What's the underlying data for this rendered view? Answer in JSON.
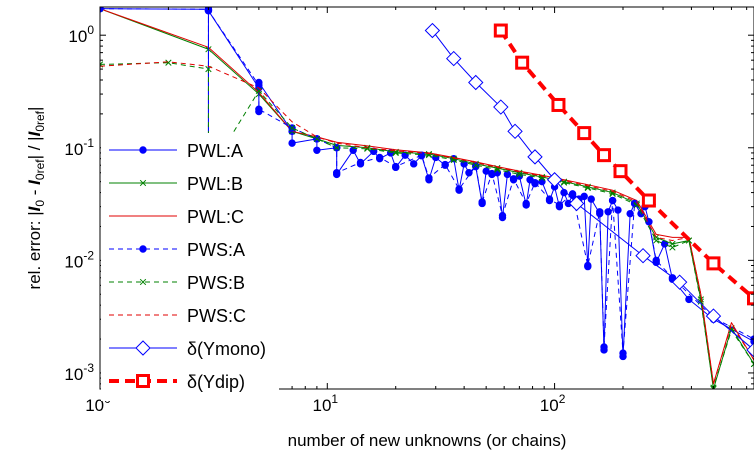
{
  "chart_data": {
    "type": "line",
    "xscale": "log",
    "yscale": "log",
    "xlim": [
      1,
      754
    ],
    "ylim": [
      0.00072,
      1.78
    ],
    "xlabel": "number of new unknowns (or chains)",
    "ylabel_parts": {
      "prefix": "rel. error: |",
      "I0": "I",
      "I0_sub": "0",
      "minus": " - ",
      "Iref": "I",
      "Iref_sub": "0ref",
      "div": "| / |",
      "Iref2": "I",
      "Iref2_sub": "0ref",
      "suffix": "|"
    },
    "xticks": [
      {
        "value": 1,
        "base": "10",
        "exp": "0"
      },
      {
        "value": 10,
        "base": "10",
        "exp": "1"
      },
      {
        "value": 100,
        "base": "10",
        "exp": "2"
      }
    ],
    "yticks": [
      {
        "value": 0.001,
        "base": "10",
        "exp": "-3"
      },
      {
        "value": 0.01,
        "base": "10",
        "exp": "-2"
      },
      {
        "value": 0.1,
        "base": "10",
        "exp": "-1"
      },
      {
        "value": 1,
        "base": "10",
        "exp": "0"
      }
    ],
    "legend_position": "left",
    "series": [
      {
        "name": "PWL:A",
        "color": "#0000ff",
        "dash": "solid",
        "marker": "dot",
        "width": 1,
        "points": [
          [
            1,
            1.72
          ],
          [
            3,
            1.7
          ],
          [
            3,
            0.05
          ],
          [
            3,
            1.65
          ],
          [
            5,
            0.34
          ],
          [
            5,
            0.21
          ],
          [
            5,
            0.38
          ],
          [
            7,
            0.14
          ],
          [
            7,
            0.11
          ],
          [
            9,
            0.12
          ],
          [
            9,
            0.095
          ],
          [
            11,
            0.1
          ],
          [
            11,
            0.058
          ],
          [
            13,
            0.095
          ],
          [
            14,
            0.072
          ],
          [
            16,
            0.093
          ],
          [
            17,
            0.08
          ],
          [
            19,
            0.09
          ],
          [
            20,
            0.067
          ],
          [
            22,
            0.086
          ],
          [
            24,
            0.072
          ],
          [
            26,
            0.085
          ],
          [
            28,
            0.052
          ],
          [
            30,
            0.082
          ],
          [
            33,
            0.07
          ],
          [
            36,
            0.08
          ],
          [
            38,
            0.042
          ],
          [
            40,
            0.072
          ],
          [
            42,
            0.06
          ],
          [
            45,
            0.068
          ],
          [
            48,
            0.032
          ],
          [
            50,
            0.062
          ],
          [
            53,
            0.058
          ],
          [
            56,
            0.06
          ],
          [
            59,
            0.024
          ],
          [
            62,
            0.058
          ],
          [
            66,
            0.052
          ],
          [
            70,
            0.056
          ],
          [
            75,
            0.031
          ],
          [
            78,
            0.052
          ],
          [
            82,
            0.048
          ],
          [
            88,
            0.05
          ],
          [
            95,
            0.034
          ],
          [
            100,
            0.045
          ],
          [
            105,
            0.03
          ],
          [
            110,
            0.04
          ],
          [
            115,
            0.032
          ],
          [
            120,
            0.038
          ],
          [
            128,
            0.035
          ],
          [
            135,
            0.037
          ],
          [
            140,
            0.0088
          ],
          [
            145,
            0.035
          ],
          [
            158,
            0.026
          ],
          [
            165,
            0.0016
          ],
          [
            172,
            0.027
          ],
          [
            180,
            0.034
          ],
          [
            190,
            0.028
          ],
          [
            200,
            0.0014
          ],
          [
            215,
            0.026
          ],
          [
            225,
            0.032
          ],
          [
            240,
            0.026
          ],
          [
            250,
            0.03
          ],
          [
            260,
            0.022
          ],
          [
            280,
            0.0096
          ],
          [
            305,
            0.014
          ],
          [
            330,
            0.0068
          ],
          [
            390,
            0.0045
          ],
          [
            500,
            0.003
          ],
          [
            754,
            0.0019
          ]
        ]
      },
      {
        "name": "PWL:B",
        "color": "#008000",
        "dash": "solid",
        "marker": "x",
        "width": 1,
        "points": [
          [
            1,
            1.72
          ],
          [
            3,
            0.75
          ],
          [
            5,
            0.3
          ],
          [
            7,
            0.14
          ],
          [
            9,
            0.12
          ],
          [
            11,
            0.105
          ],
          [
            15,
            0.1
          ],
          [
            20,
            0.092
          ],
          [
            28,
            0.088
          ],
          [
            36,
            0.08
          ],
          [
            45,
            0.072
          ],
          [
            56,
            0.066
          ],
          [
            70,
            0.06
          ],
          [
            88,
            0.055
          ],
          [
            110,
            0.05
          ],
          [
            140,
            0.045
          ],
          [
            180,
            0.04
          ],
          [
            230,
            0.032
          ],
          [
            280,
            0.016
          ],
          [
            330,
            0.014
          ],
          [
            390,
            0.015
          ],
          [
            440,
            0.0045
          ],
          [
            500,
            0.00072
          ],
          [
            600,
            0.0025
          ],
          [
            754,
            0.0012
          ]
        ]
      },
      {
        "name": "PWL:C",
        "color": "#e00000",
        "dash": "solid",
        "marker": "none",
        "width": 1,
        "points": [
          [
            1,
            1.72
          ],
          [
            3,
            0.78
          ],
          [
            5,
            0.31
          ],
          [
            7,
            0.14
          ],
          [
            9,
            0.125
          ],
          [
            11,
            0.112
          ],
          [
            15,
            0.104
          ],
          [
            20,
            0.096
          ],
          [
            28,
            0.09
          ],
          [
            36,
            0.082
          ],
          [
            45,
            0.075
          ],
          [
            56,
            0.068
          ],
          [
            70,
            0.062
          ],
          [
            88,
            0.057
          ],
          [
            110,
            0.052
          ],
          [
            140,
            0.047
          ],
          [
            180,
            0.042
          ],
          [
            230,
            0.034
          ],
          [
            280,
            0.017
          ],
          [
            330,
            0.016
          ],
          [
            390,
            0.016
          ],
          [
            440,
            0.005
          ],
          [
            500,
            0.0008
          ],
          [
            600,
            0.0028
          ],
          [
            754,
            0.0013
          ]
        ]
      },
      {
        "name": "PWS:A",
        "color": "#0000ff",
        "dash": "dashed",
        "marker": "dot",
        "width": 1,
        "points": [
          [
            1,
            1.72
          ],
          [
            3,
            1.7
          ],
          [
            3,
            0.05
          ],
          [
            3,
            1.65
          ],
          [
            5,
            0.36
          ],
          [
            5,
            0.22
          ],
          [
            7,
            0.15
          ],
          [
            9,
            0.12
          ],
          [
            11,
            0.1
          ],
          [
            11,
            0.06
          ],
          [
            14,
            0.074
          ],
          [
            17,
            0.082
          ],
          [
            20,
            0.068
          ],
          [
            26,
            0.086
          ],
          [
            28,
            0.054
          ],
          [
            33,
            0.071
          ],
          [
            38,
            0.043
          ],
          [
            45,
            0.069
          ],
          [
            48,
            0.033
          ],
          [
            53,
            0.059
          ],
          [
            59,
            0.025
          ],
          [
            66,
            0.053
          ],
          [
            75,
            0.032
          ],
          [
            82,
            0.049
          ],
          [
            95,
            0.035
          ],
          [
            105,
            0.031
          ],
          [
            120,
            0.039
          ],
          [
            140,
            0.009
          ],
          [
            158,
            0.027
          ],
          [
            165,
            0.0017
          ],
          [
            180,
            0.034
          ],
          [
            200,
            0.0015
          ],
          [
            225,
            0.032
          ],
          [
            260,
            0.022
          ],
          [
            280,
            0.01
          ],
          [
            330,
            0.007
          ],
          [
            500,
            0.0031
          ],
          [
            754,
            0.002
          ]
        ]
      },
      {
        "name": "PWS:B",
        "color": "#008000",
        "dash": "dashed",
        "marker": "x",
        "width": 1,
        "points": [
          [
            1,
            0.55
          ],
          [
            2,
            0.57
          ],
          [
            3,
            0.5
          ],
          [
            3,
            0.06
          ],
          [
            5,
            0.32
          ],
          [
            7,
            0.15
          ],
          [
            9,
            0.12
          ],
          [
            11,
            0.1
          ],
          [
            15,
            0.098
          ],
          [
            20,
            0.09
          ],
          [
            28,
            0.086
          ],
          [
            36,
            0.078
          ],
          [
            45,
            0.07
          ],
          [
            56,
            0.064
          ],
          [
            70,
            0.058
          ],
          [
            88,
            0.054
          ],
          [
            110,
            0.049
          ],
          [
            140,
            0.044
          ],
          [
            180,
            0.039
          ],
          [
            230,
            0.031
          ],
          [
            280,
            0.015
          ],
          [
            330,
            0.013
          ],
          [
            390,
            0.015
          ],
          [
            440,
            0.0043
          ],
          [
            500,
            0.00074
          ],
          [
            600,
            0.0024
          ],
          [
            754,
            0.0012
          ]
        ]
      },
      {
        "name": "PWS:C",
        "color": "#e00000",
        "dash": "dashed",
        "marker": "none",
        "width": 1,
        "points": [
          [
            1,
            0.53
          ],
          [
            2,
            0.58
          ],
          [
            3,
            0.53
          ],
          [
            5,
            0.34
          ],
          [
            7,
            0.17
          ],
          [
            9,
            0.125
          ],
          [
            11,
            0.11
          ],
          [
            15,
            0.1
          ],
          [
            20,
            0.094
          ],
          [
            28,
            0.089
          ],
          [
            36,
            0.081
          ],
          [
            45,
            0.074
          ],
          [
            56,
            0.067
          ],
          [
            70,
            0.061
          ],
          [
            88,
            0.056
          ],
          [
            110,
            0.051
          ],
          [
            140,
            0.046
          ],
          [
            180,
            0.041
          ],
          [
            230,
            0.033
          ],
          [
            280,
            0.016
          ],
          [
            330,
            0.015
          ],
          [
            390,
            0.016
          ],
          [
            440,
            0.005
          ],
          [
            500,
            0.0008
          ],
          [
            600,
            0.0027
          ],
          [
            754,
            0.0013
          ]
        ]
      },
      {
        "name": "δ(Ymono)",
        "color": "#0000ff",
        "dash": "solid",
        "marker": "diamond",
        "width": 1,
        "points": [
          [
            29,
            1.1
          ],
          [
            36,
            0.62
          ],
          [
            45,
            0.38
          ],
          [
            58,
            0.23
          ],
          [
            67,
            0.14
          ],
          [
            82,
            0.083
          ],
          [
            100,
            0.052
          ],
          [
            125,
            0.032
          ],
          [
            245,
            0.011
          ],
          [
            355,
            0.0064
          ],
          [
            500,
            0.0032
          ],
          [
            754,
            0.0016
          ]
        ]
      },
      {
        "name": "δ(Ydip)",
        "color": "#ff0000",
        "dash": "dashed",
        "marker": "square",
        "width": 4,
        "points": [
          [
            58,
            1.1
          ],
          [
            72,
            0.57
          ],
          [
            104,
            0.24
          ],
          [
            135,
            0.135
          ],
          [
            165,
            0.086
          ],
          [
            195,
            0.062
          ],
          [
            260,
            0.034
          ],
          [
            500,
            0.0094
          ],
          [
            754,
            0.0046
          ]
        ]
      }
    ]
  }
}
